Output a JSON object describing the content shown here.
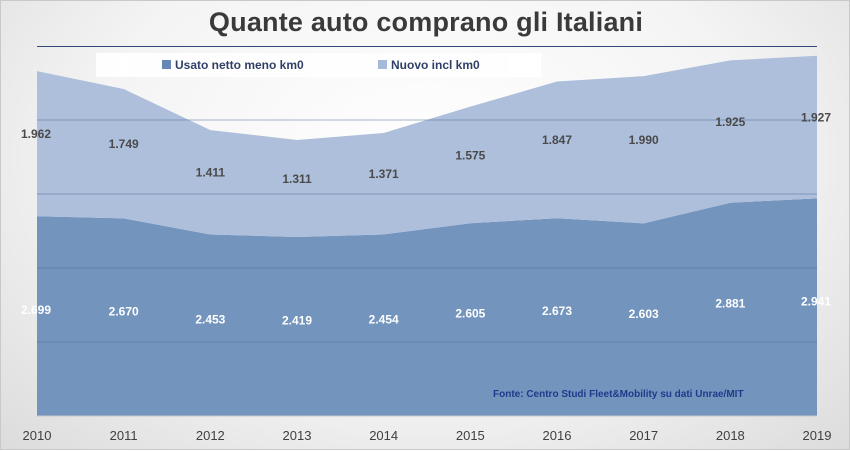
{
  "chart_data": {
    "type": "area",
    "stacked": true,
    "title": "Quante auto comprano gli Italiani",
    "x": [
      "2010",
      "2011",
      "2012",
      "2013",
      "2014",
      "2015",
      "2016",
      "2017",
      "2018",
      "2019"
    ],
    "series": [
      {
        "name": "Usato netto meno km0",
        "values": [
          2699,
          2670,
          2453,
          2419,
          2454,
          2605,
          2673,
          2603,
          2881,
          2941
        ],
        "labels": [
          "2.699",
          "2.670",
          "2.453",
          "2.419",
          "2.454",
          "2.605",
          "2.673",
          "2.603",
          "2.881",
          "2.941"
        ],
        "color": "#7394bd"
      },
      {
        "name": "Nuovo incl km0",
        "values": [
          1962,
          1749,
          1411,
          1311,
          1371,
          1575,
          1847,
          1990,
          1925,
          1927
        ],
        "labels": [
          "1.962",
          "1.749",
          "1.411",
          "1.311",
          "1.371",
          "1.575",
          "1.847",
          "1.990",
          "1.925",
          "1.927"
        ],
        "color": "#aebfdc"
      }
    ],
    "ylim": [
      0,
      5000
    ],
    "grid": true,
    "legend_position": "top-left",
    "source": "Fonte: Centro Studi Fleet&Mobility su dati Unrae/MIT"
  }
}
